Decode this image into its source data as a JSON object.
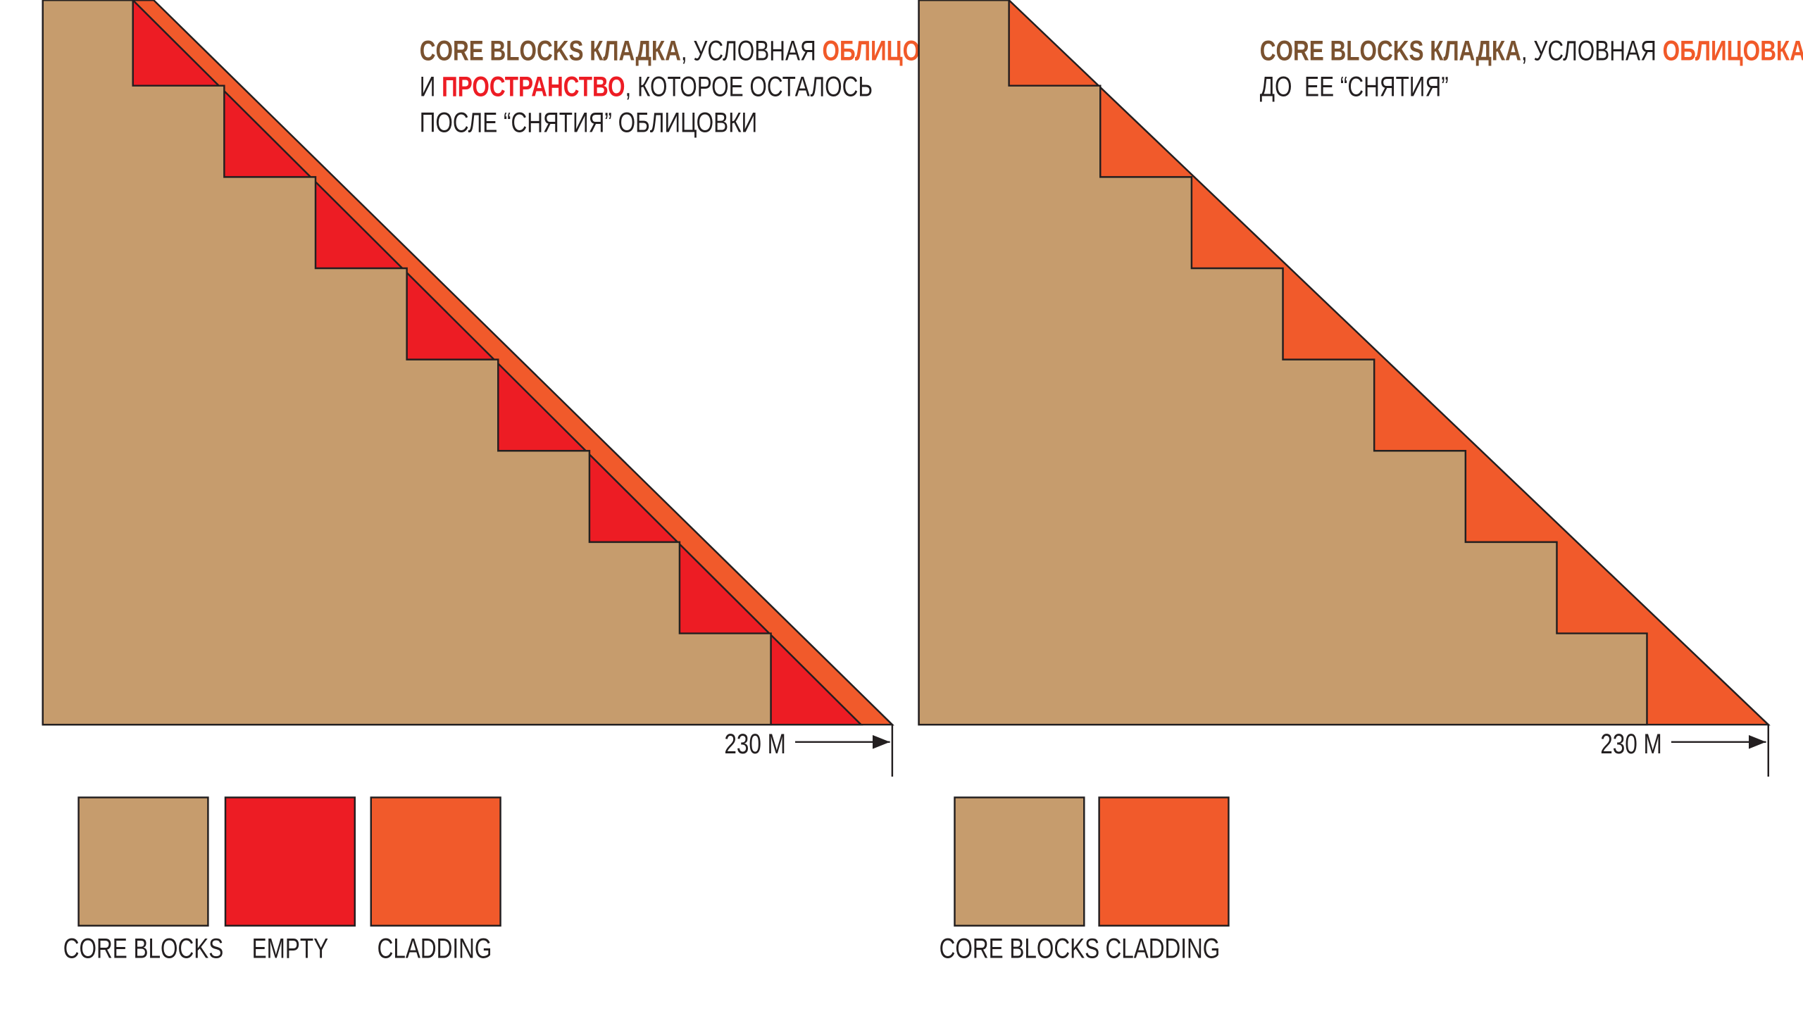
{
  "left": {
    "caption": {
      "line1": {
        "core": "CORE BLOCKS КЛАДКА",
        "mid": ", УСЛОВНАЯ ",
        "cladding": "ОБЛИЦОВКА"
      },
      "line2": {
        "start": "И ",
        "space": "ПРОСТРАНСТВО",
        "rest": ", КОТОРОЕ ОСТАЛОСЬ"
      },
      "line3": "ПОСЛЕ “СНЯТИЯ” ОБЛИЦОВКИ"
    },
    "dimension": "230 M",
    "legend": [
      "CORE BLOCKS",
      "EMPTY",
      "CLADDING"
    ]
  },
  "right": {
    "caption": {
      "line1": {
        "core": "CORE BLOCKS КЛАДКА",
        "mid": ", УСЛОВНАЯ ",
        "cladding": "ОБЛИЦОВКА"
      },
      "line2": "ДО  ЕЕ “СНЯТИЯ”"
    },
    "dimension": "230 M",
    "legend": [
      "CORE BLOCKS",
      "CLADDING"
    ]
  }
}
